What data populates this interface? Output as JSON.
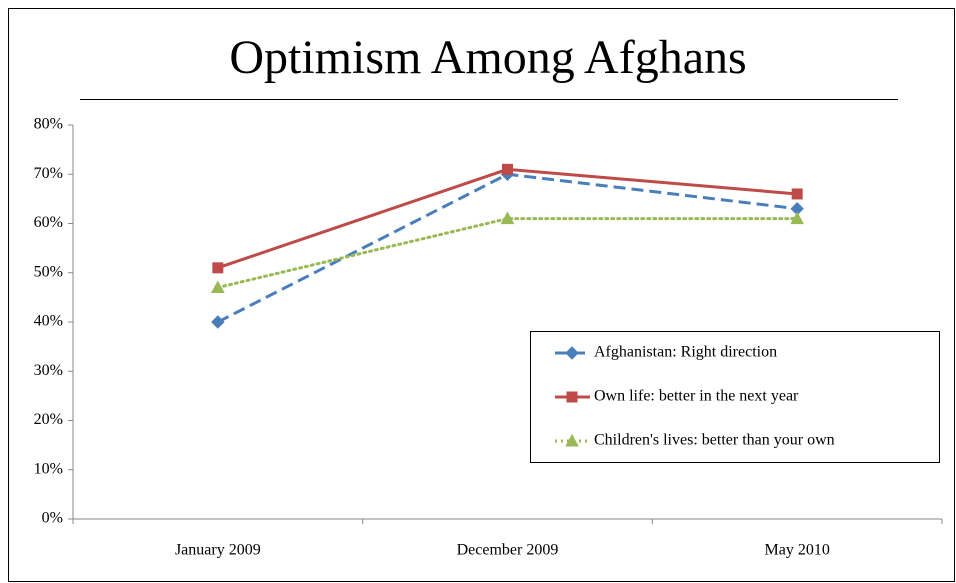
{
  "chart_data": {
    "type": "line",
    "title": "Optimism Among Afghans",
    "categories": [
      "January 2009",
      "December 2009",
      "May 2010"
    ],
    "series": [
      {
        "name": "Afghanistan: Right direction",
        "color": "#4a7ebb",
        "dash": "dashed",
        "marker": "diamond",
        "values": [
          40,
          70,
          63
        ]
      },
      {
        "name": "Own life: better in the next year",
        "color": "#be4b48",
        "dash": "solid",
        "marker": "square",
        "values": [
          51,
          71,
          66
        ]
      },
      {
        "name": "Children's lives: better than your own",
        "color": "#98b954",
        "dash": "dotted",
        "marker": "triangle",
        "values": [
          47,
          61,
          61
        ]
      }
    ],
    "ylim": [
      0,
      80
    ],
    "yticks": [
      {
        "value": 0,
        "label": "0%"
      },
      {
        "value": 10,
        "label": "10%"
      },
      {
        "value": 20,
        "label": "20%"
      },
      {
        "value": 30,
        "label": "30%"
      },
      {
        "value": 40,
        "label": "40%"
      },
      {
        "value": 50,
        "label": "50%"
      },
      {
        "value": 60,
        "label": "60%"
      },
      {
        "value": 70,
        "label": "70%"
      },
      {
        "value": 80,
        "label": "80%"
      }
    ],
    "grid": false,
    "legend": "lower right"
  }
}
